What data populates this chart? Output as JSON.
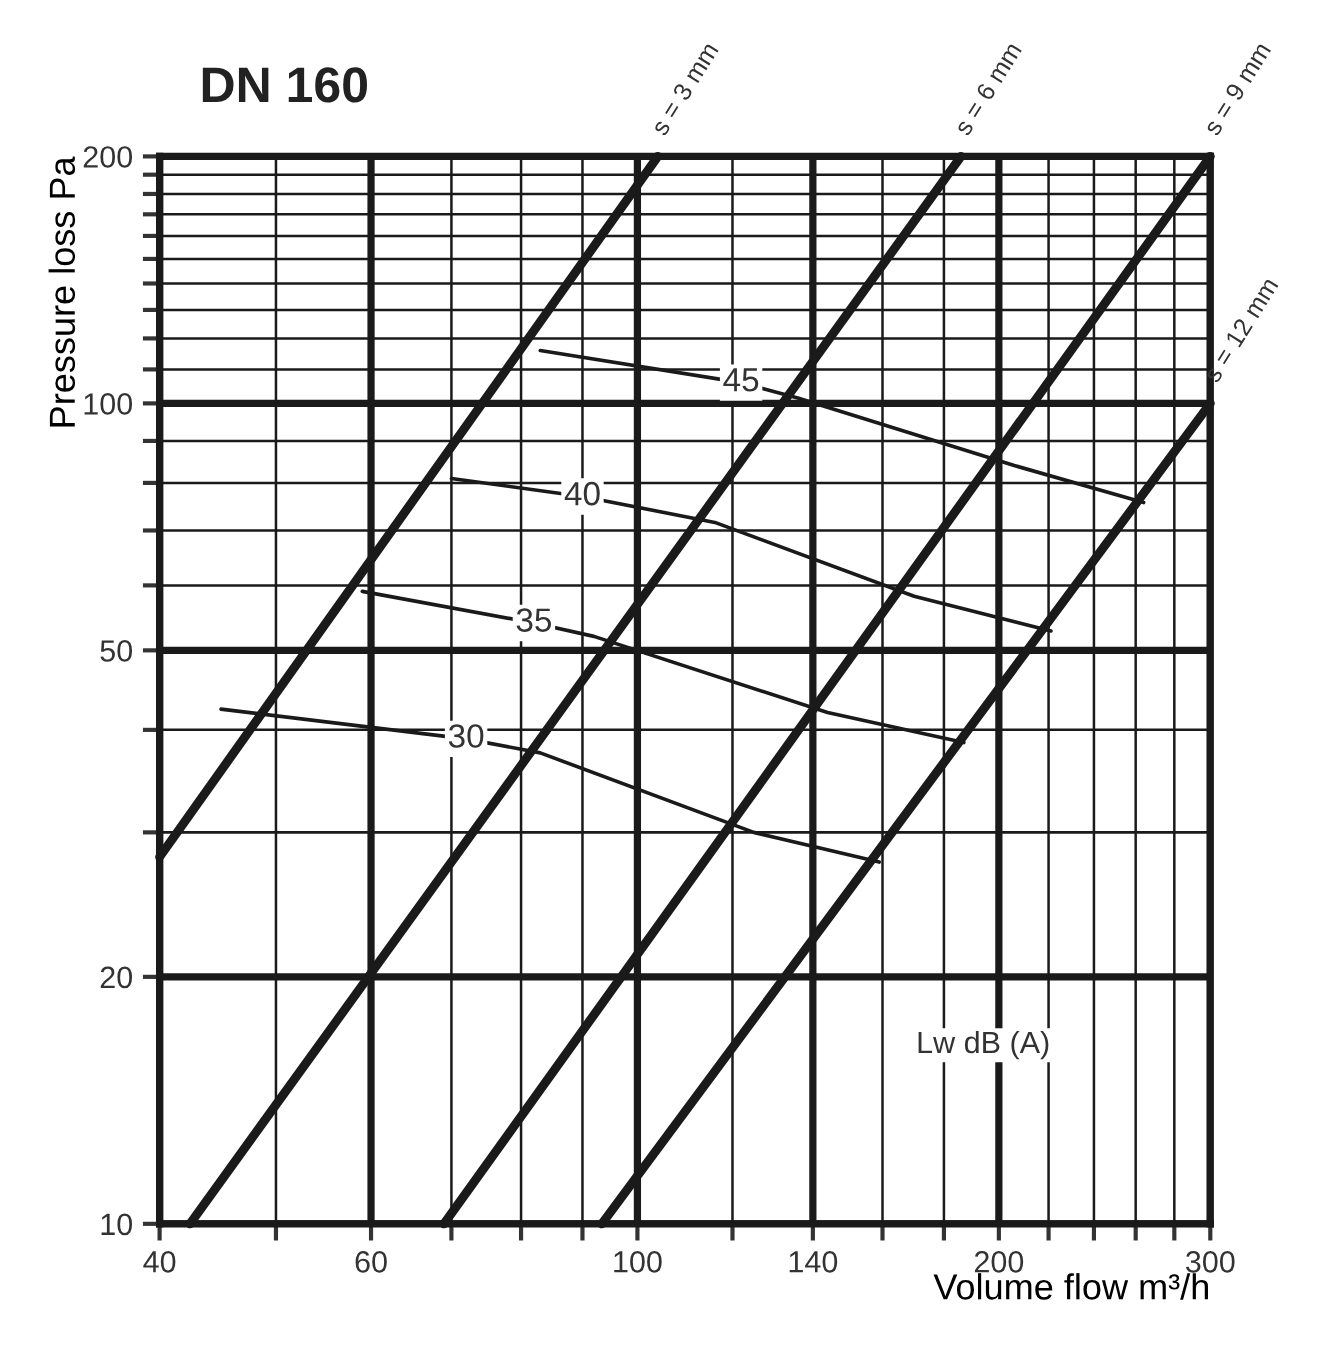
{
  "chart_data": {
    "type": "line",
    "title": "DN 160",
    "xlabel": "Volume flow m³/h",
    "ylabel": "Pressure loss Pa",
    "log": "xy",
    "grid": true,
    "legend": false,
    "marker": "none",
    "line_style": "solid",
    "xlim": [
      40,
      300
    ],
    "ylim": [
      10,
      200
    ],
    "xticks": [
      40,
      {
        "value": 50,
        "label": null
      },
      60,
      {
        "value": 70,
        "label": null
      },
      {
        "value": 80,
        "label": null
      },
      {
        "value": 90,
        "label": null
      },
      100,
      {
        "value": 120,
        "label": null
      },
      140,
      {
        "value": 160,
        "label": null
      },
      {
        "value": 180,
        "label": null
      },
      200,
      {
        "value": 220,
        "label": null
      },
      {
        "value": 240,
        "label": null
      },
      {
        "value": 260,
        "label": null
      },
      {
        "value": 280,
        "label": null
      },
      300
    ],
    "yticks": [
      10,
      20,
      {
        "value": 30,
        "label": null
      },
      {
        "value": 40,
        "label": null
      },
      50,
      {
        "value": 60,
        "label": null
      },
      {
        "value": 70,
        "label": null
      },
      {
        "value": 80,
        "label": null
      },
      {
        "value": 90,
        "label": null
      },
      100,
      {
        "value": 110,
        "label": null
      },
      {
        "value": 120,
        "label": null
      },
      {
        "value": 130,
        "label": null
      },
      {
        "value": 140,
        "label": null
      },
      {
        "value": 150,
        "label": null
      },
      {
        "value": 160,
        "label": null
      },
      {
        "value": 170,
        "label": null
      },
      {
        "value": 180,
        "label": null
      },
      {
        "value": 190,
        "label": null
      },
      200
    ],
    "series": [
      {
        "name": "s = 3 mm",
        "color": "#1a1a1a",
        "x": [
          40,
          104
        ],
        "values": [
          28,
          200
        ]
      },
      {
        "name": "s = 6 mm",
        "color": "#1a1a1a",
        "x": [
          42.4,
          186
        ],
        "values": [
          10,
          200
        ]
      },
      {
        "name": "s = 9 mm",
        "color": "#1a1a1a",
        "x": [
          69,
          300
        ],
        "values": [
          10,
          200
        ]
      },
      {
        "name": "s = 12 mm",
        "color": "#1a1a1a",
        "x": [
          93.4,
          300
        ],
        "values": [
          10,
          100
        ]
      },
      {
        "name": "30",
        "color": "#1a1a1a",
        "x": [
          45,
          72,
          83,
          125,
          159
        ],
        "values": [
          42.4,
          39,
          37.5,
          30,
          27.6
        ]
      },
      {
        "name": "35",
        "color": "#1a1a1a",
        "x": [
          59,
          82,
          92,
          144,
          187
        ],
        "values": [
          59,
          54,
          52,
          42,
          38.6
        ]
      },
      {
        "name": "40",
        "color": "#1a1a1a",
        "x": [
          70,
          90,
          116,
          170,
          221
        ],
        "values": [
          81,
          77,
          71.6,
          58.2,
          52.8
        ]
      },
      {
        "name": "45",
        "color": "#1a1a1a",
        "x": [
          83,
          122,
          136,
          206,
          264
        ],
        "values": [
          116,
          106,
          101.5,
          84,
          75.7
        ]
      }
    ],
    "annotations": [
      "Lw dB (A)"
    ]
  }
}
